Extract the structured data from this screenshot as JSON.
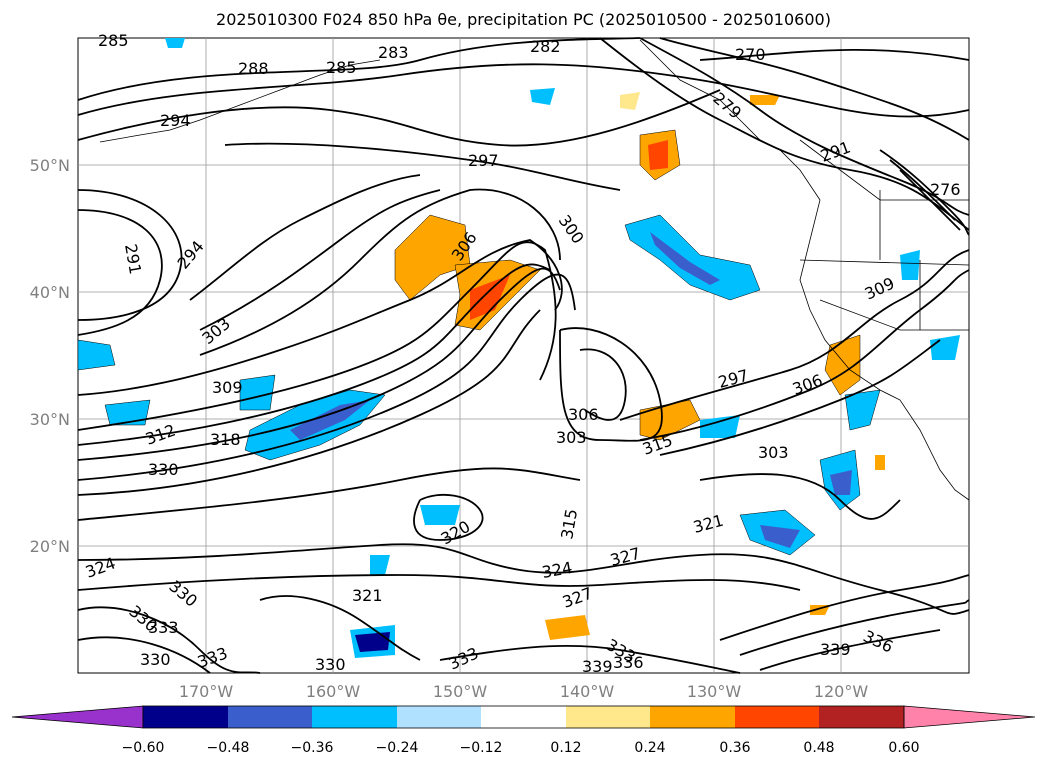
{
  "title": "2025010300 F024 850 hPa θe, precipitation PC (2025010500 - 2025010600)",
  "map": {
    "lat_labels": [
      "50°N",
      "40°N",
      "30°N",
      "20°N"
    ],
    "lon_labels": [
      "170°W",
      "160°W",
      "150°W",
      "140°W",
      "130°W",
      "120°W"
    ],
    "contour_labels": [
      "285",
      "288",
      "282",
      "283",
      "285",
      "270",
      "279",
      "294",
      "297",
      "291",
      "276",
      "291",
      "294",
      "300",
      "306",
      "309",
      "303",
      "309",
      "297",
      "306",
      "312",
      "318",
      "306",
      "303",
      "315",
      "303",
      "330",
      "320",
      "321",
      "315",
      "324",
      "327",
      "321",
      "324",
      "330",
      "327",
      "333",
      "330",
      "333",
      "330",
      "333",
      "336",
      "339",
      "330",
      "333",
      "336",
      "339"
    ]
  },
  "colorbar": {
    "tick_labels": [
      "−0.60",
      "−0.48",
      "−0.36",
      "−0.24",
      "−0.12",
      "0.12",
      "0.24",
      "0.36",
      "0.48",
      "0.60"
    ],
    "colors": [
      "#9932cc",
      "#00008b",
      "#3a5fcd",
      "#00bfff",
      "#b0e2ff",
      "#ffffff",
      "#ffe88c",
      "#ffa500",
      "#ff4500",
      "#b22222",
      "#ff82ab"
    ]
  }
}
